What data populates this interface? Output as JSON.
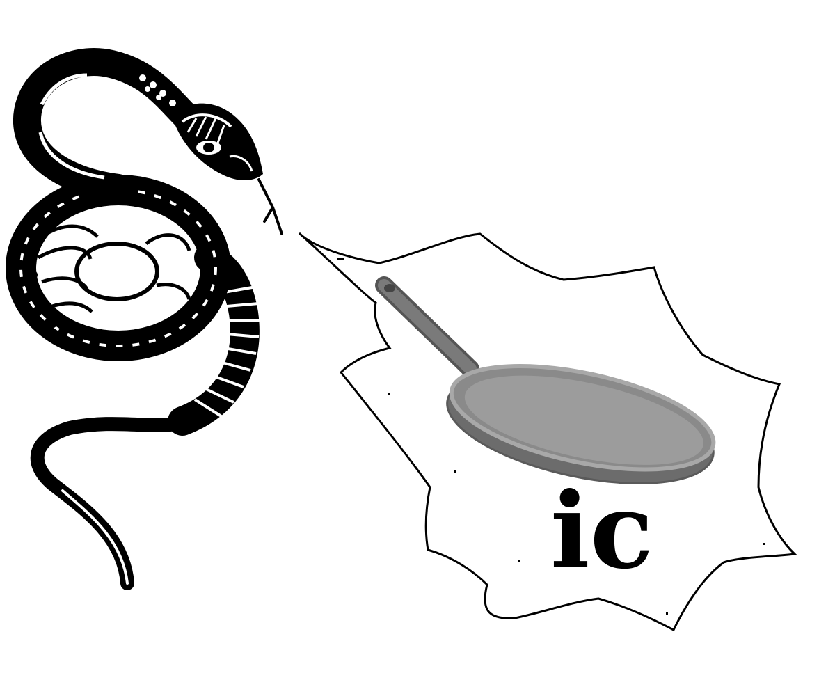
{
  "caption": {
    "text": "ic"
  },
  "illustration": {
    "snake": {
      "icon": "snake-icon",
      "style": "black tribal line art"
    },
    "burst": {
      "icon": "speech-burst-icon",
      "style": "jagged outline bubble"
    },
    "pan": {
      "icon": "frying-pan-icon",
      "style": "grey skillet"
    }
  },
  "colors": {
    "ink": "#000000",
    "background": "#ffffff",
    "pan_rim": "#7a7a7a",
    "pan_inner": "#9c9c9c",
    "pan_outer": "#6c6c6c",
    "pan_handle": "#6a6a6a"
  }
}
